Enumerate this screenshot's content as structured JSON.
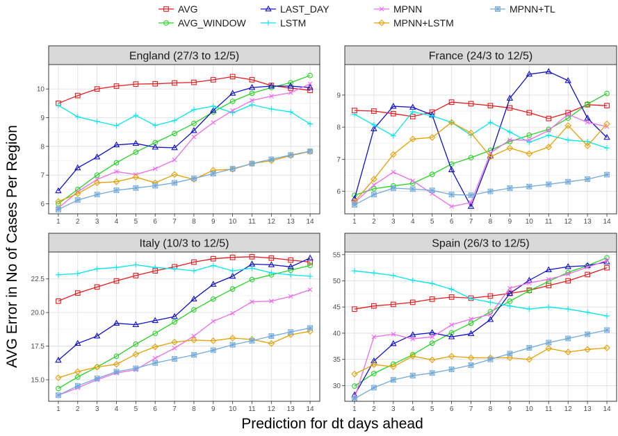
{
  "chart_data": {
    "type": "line",
    "xlabel": "Prediction for dt days ahead",
    "ylabel": "AVG Error in No of Cases Per Region",
    "x": [
      1,
      2,
      3,
      4,
      5,
      6,
      7,
      8,
      9,
      10,
      11,
      12,
      13,
      14
    ],
    "legend_position": "top",
    "series_styles": [
      {
        "name": "AVG",
        "color": "#e41a1c",
        "marker": "square"
      },
      {
        "name": "AVG_WINDOW",
        "color": "#22d322",
        "marker": "circle"
      },
      {
        "name": "LAST_DAY",
        "color": "#1010c8",
        "marker": "triangle"
      },
      {
        "name": "LSTM",
        "color": "#00e5ee",
        "marker": "plus"
      },
      {
        "name": "MPNN",
        "color": "#ee6aee",
        "marker": "x"
      },
      {
        "name": "MPNN+LSTM",
        "color": "#e69f00",
        "marker": "diamond"
      },
      {
        "name": "MPNN+TL",
        "color": "#6fa8dc",
        "marker": "asterisk"
      }
    ],
    "panels": [
      {
        "title": "England (27/3 to 12/5)",
        "ylim": [
          5.65,
          10.85
        ],
        "yticks": [
          6,
          7,
          8,
          9,
          10
        ],
        "ytick_labels": [
          "6",
          "7",
          "8",
          "9",
          "10"
        ],
        "series": [
          {
            "name": "AVG",
            "values": [
              9.5,
              9.77,
              10.0,
              10.1,
              10.17,
              10.18,
              10.21,
              10.23,
              10.32,
              10.43,
              10.32,
              10.12,
              10.03,
              9.95
            ]
          },
          {
            "name": "AVG_WINDOW",
            "values": [
              6.0,
              6.5,
              7.0,
              7.43,
              7.8,
              8.13,
              8.45,
              8.8,
              9.2,
              9.57,
              9.85,
              10.05,
              10.22,
              10.47
            ]
          },
          {
            "name": "LAST_DAY",
            "values": [
              6.45,
              7.25,
              7.63,
              8.05,
              8.1,
              7.97,
              7.95,
              8.55,
              9.25,
              9.85,
              10.05,
              10.1,
              10.1,
              10.05
            ]
          },
          {
            "name": "LSTM",
            "values": [
              9.43,
              9.03,
              8.87,
              8.72,
              9.08,
              8.73,
              8.9,
              9.28,
              9.4,
              9.17,
              9.45,
              9.3,
              9.2,
              8.78
            ]
          },
          {
            "name": "MPNN",
            "values": [
              5.85,
              6.42,
              6.85,
              7.12,
              7.02,
              7.22,
              7.53,
              8.33,
              8.83,
              9.25,
              9.6,
              9.75,
              9.87,
              10.18
            ]
          },
          {
            "name": "MPNN+LSTM",
            "values": [
              6.08,
              6.35,
              6.73,
              6.77,
              6.93,
              6.73,
              7.02,
              6.85,
              7.17,
              7.2,
              7.4,
              7.5,
              7.68,
              7.82
            ]
          },
          {
            "name": "MPNN+TL",
            "values": [
              5.8,
              6.13,
              6.32,
              6.47,
              6.55,
              6.63,
              6.73,
              6.88,
              7.05,
              7.22,
              7.4,
              7.55,
              7.7,
              7.83
            ]
          }
        ]
      },
      {
        "title": "France (24/3 to 12/5)",
        "ylim": [
          5.3,
          9.95
        ],
        "yticks": [
          6,
          7,
          8,
          9
        ],
        "ytick_labels": [
          "6",
          "7",
          "8",
          "9"
        ],
        "series": [
          {
            "name": "AVG",
            "values": [
              8.52,
              8.5,
              8.42,
              8.33,
              8.47,
              8.78,
              8.73,
              8.67,
              8.6,
              8.45,
              8.27,
              8.45,
              8.7,
              8.67
            ]
          },
          {
            "name": "AVG_WINDOW",
            "values": [
              5.88,
              6.08,
              6.17,
              6.25,
              6.53,
              6.85,
              7.05,
              7.28,
              7.55,
              7.75,
              7.93,
              8.28,
              8.72,
              9.05
            ]
          },
          {
            "name": "LAST_DAY",
            "values": [
              5.77,
              7.95,
              8.65,
              8.62,
              8.38,
              6.67,
              5.53,
              7.1,
              8.9,
              9.65,
              9.73,
              9.45,
              8.28,
              7.68
            ]
          },
          {
            "name": "LSTM",
            "values": [
              8.4,
              8.07,
              7.73,
              8.48,
              8.35,
              8.15,
              7.75,
              8.15,
              7.85,
              7.53,
              7.75,
              7.6,
              7.55,
              7.35
            ]
          },
          {
            "name": "MPNN",
            "values": [
              5.65,
              6.2,
              6.6,
              6.33,
              5.93,
              5.53,
              5.65,
              7.2,
              7.6,
              7.6,
              7.9,
              8.4,
              8.15,
              8.02
            ]
          },
          {
            "name": "MPNN+LSTM",
            "values": [
              5.68,
              6.38,
              7.15,
              7.63,
              7.68,
              8.15,
              7.82,
              7.08,
              7.35,
              7.17,
              7.38,
              8.05,
              7.42,
              8.1
            ]
          },
          {
            "name": "MPNN+TL",
            "values": [
              5.58,
              5.9,
              6.1,
              6.07,
              6.03,
              5.9,
              5.88,
              6.0,
              6.1,
              6.15,
              6.22,
              6.3,
              6.38,
              6.52
            ]
          }
        ]
      },
      {
        "title": "Italy (10/3 to 12/5)",
        "ylim": [
          13.4,
          24.5
        ],
        "yticks": [
          15,
          17.5,
          20,
          22.5
        ],
        "ytick_labels": [
          "15.0",
          "17.5",
          "20.0",
          "22.5"
        ],
        "series": [
          {
            "name": "AVG",
            "values": [
              20.85,
              21.45,
              21.9,
              22.35,
              22.75,
              23.1,
              23.4,
              23.75,
              24.0,
              24.1,
              24.15,
              24.05,
              23.9,
              23.75
            ]
          },
          {
            "name": "AVG_WINDOW",
            "values": [
              14.35,
              15.2,
              15.95,
              16.75,
              17.65,
              18.45,
              19.3,
              20.2,
              21.0,
              21.75,
              22.45,
              22.8,
              23.15,
              23.5
            ]
          },
          {
            "name": "LAST_DAY",
            "values": [
              16.45,
              17.7,
              18.25,
              19.2,
              19.1,
              19.4,
              19.7,
              21.0,
              22.1,
              22.7,
              23.6,
              23.55,
              23.4,
              24.05
            ]
          },
          {
            "name": "LSTM",
            "values": [
              22.8,
              22.9,
              23.25,
              23.35,
              23.55,
              23.35,
              23.25,
              23.1,
              23.5,
              23.1,
              23.3,
              22.95,
              22.8,
              22.7
            ]
          },
          {
            "name": "MPNN",
            "values": [
              13.85,
              14.4,
              15.0,
              15.5,
              15.75,
              16.6,
              17.35,
              18.25,
              19.35,
              19.95,
              20.8,
              20.85,
              21.2,
              21.7
            ]
          },
          {
            "name": "MPNN+LSTM",
            "values": [
              15.15,
              15.6,
              15.95,
              16.15,
              16.9,
              17.45,
              17.8,
              17.95,
              17.9,
              18.1,
              18.0,
              17.7,
              18.35,
              18.6
            ]
          },
          {
            "name": "MPNN+TL",
            "values": [
              13.85,
              14.55,
              15.1,
              15.6,
              15.85,
              16.25,
              16.55,
              16.85,
              17.2,
              17.6,
              17.9,
              18.25,
              18.55,
              18.85
            ]
          }
        ]
      },
      {
        "title": "Spain (26/3 to 12/5)",
        "ylim": [
          27.0,
          55.5
        ],
        "yticks": [
          30,
          35,
          40,
          45,
          50,
          55
        ],
        "ytick_labels": [
          "30",
          "35",
          "40",
          "45",
          "50",
          "55"
        ],
        "series": [
          {
            "name": "AVG",
            "values": [
              44.6,
              45.2,
              45.5,
              45.9,
              46.5,
              46.9,
              46.7,
              47.1,
              47.6,
              48.2,
              49.1,
              50.0,
              51.2,
              52.5
            ]
          },
          {
            "name": "AVG_WINDOW",
            "values": [
              29.9,
              32.3,
              34.1,
              35.9,
              38.1,
              40.1,
              41.9,
              44.1,
              46.1,
              48.1,
              49.9,
              51.6,
              52.9,
              54.4
            ]
          },
          {
            "name": "LAST_DAY",
            "values": [
              28.2,
              34.7,
              38.0,
              39.7,
              40.1,
              39.3,
              39.9,
              42.6,
              47.6,
              50.1,
              52.1,
              52.7,
              52.9,
              53.6
            ]
          },
          {
            "name": "LSTM",
            "values": [
              51.9,
              51.5,
              51.0,
              50.1,
              49.5,
              48.4,
              46.6,
              45.9,
              45.2,
              44.6,
              45.0,
              44.6,
              44.0,
              43.3
            ]
          },
          {
            "name": "MPNN",
            "values": [
              27.6,
              39.3,
              39.8,
              38.9,
              39.3,
              41.6,
              42.7,
              43.6,
              48.6,
              49.6,
              50.3,
              51.3,
              52.6,
              53.9
            ]
          },
          {
            "name": "MPNN+LSTM",
            "values": [
              32.2,
              34.0,
              33.6,
              35.6,
              34.9,
              35.6,
              35.3,
              35.3,
              35.3,
              35.0,
              37.1,
              36.4,
              36.9,
              37.2
            ]
          },
          {
            "name": "MPNN+TL",
            "values": [
              27.5,
              29.6,
              31.1,
              31.9,
              32.4,
              33.1,
              33.9,
              35.0,
              36.1,
              37.2,
              38.2,
              39.0,
              39.8,
              40.6
            ]
          }
        ]
      }
    ]
  }
}
